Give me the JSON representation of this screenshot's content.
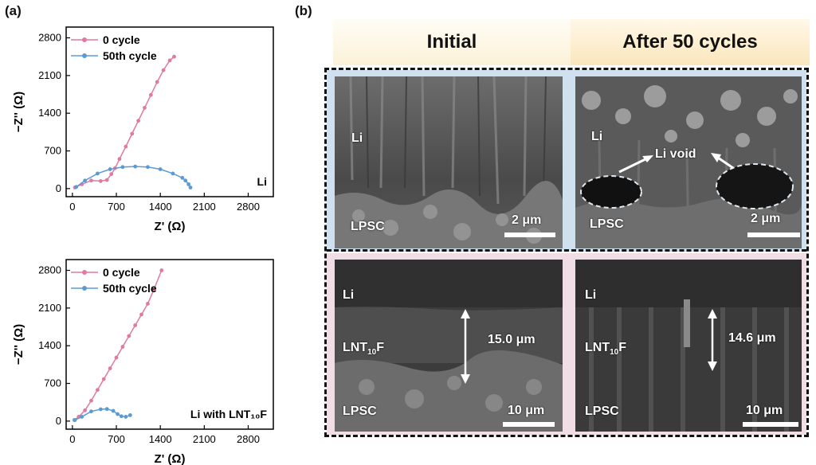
{
  "panel_a_label": "(a)",
  "panel_b_label": "(b)",
  "chart_data": [
    {
      "type": "line",
      "annotation": "Li",
      "xlabel": "Z' (Ω)",
      "ylabel": "−Z'' (Ω)",
      "xlim": [
        -100,
        3200
      ],
      "ylim": [
        -150,
        3000
      ],
      "xticks": [
        "0",
        "700",
        "1400",
        "2100",
        "2800"
      ],
      "yticks": [
        "0",
        "700",
        "1400",
        "2100",
        "2800"
      ],
      "legend_position": "top-left",
      "series": [
        {
          "name": "0   cycle",
          "color": "#e07aa0",
          "x": [
            40,
            150,
            300,
            450,
            550,
            620,
            680,
            750,
            850,
            950,
            1050,
            1150,
            1250,
            1350,
            1450,
            1550,
            1620
          ],
          "y": [
            20,
            80,
            150,
            140,
            160,
            270,
            380,
            550,
            780,
            1020,
            1260,
            1500,
            1740,
            1980,
            2200,
            2380,
            2450
          ]
        },
        {
          "name": "50th cycle",
          "color": "#5b9bd5",
          "x": [
            60,
            200,
            400,
            600,
            800,
            1000,
            1200,
            1400,
            1600,
            1750,
            1800,
            1850,
            1880
          ],
          "y": [
            30,
            150,
            280,
            360,
            400,
            410,
            400,
            360,
            280,
            200,
            150,
            80,
            20
          ]
        }
      ]
    },
    {
      "type": "line",
      "annotation": "Li with LNT₁₀F",
      "xlabel": "Z' (Ω)",
      "ylabel": "−Z'' (Ω)",
      "xlim": [
        -100,
        3200
      ],
      "ylim": [
        -150,
        3000
      ],
      "xticks": [
        "0",
        "700",
        "1400",
        "2100",
        "2800"
      ],
      "yticks": [
        "0",
        "700",
        "1400",
        "2100",
        "2800"
      ],
      "legend_position": "top-left",
      "series": [
        {
          "name": "0   cycle",
          "color": "#e07aa0",
          "x": [
            30,
            100,
            200,
            300,
            400,
            500,
            600,
            700,
            800,
            900,
            1000,
            1100,
            1200,
            1300,
            1420
          ],
          "y": [
            20,
            80,
            200,
            380,
            580,
            780,
            980,
            1180,
            1380,
            1580,
            1780,
            1980,
            2180,
            2450,
            2800
          ]
        },
        {
          "name": "50th cycle",
          "color": "#5b9bd5",
          "x": [
            40,
            150,
            300,
            450,
            550,
            650,
            720,
            780,
            850,
            920
          ],
          "y": [
            20,
            80,
            180,
            220,
            225,
            190,
            130,
            90,
            80,
            110
          ]
        }
      ]
    }
  ],
  "panel_b": {
    "col_initial": "Initial",
    "col_after": "After 50 cycles",
    "top_left": {
      "li": "Li",
      "lpsc": "LPSC",
      "scale": "2 μm"
    },
    "top_right": {
      "li": "Li",
      "lpsc": "LPSC",
      "scale": "2 μm",
      "void": "Li void"
    },
    "bottom_left": {
      "li": "Li",
      "lnt": "LNT",
      "lnt_sub": "10",
      "lnt_end": "F",
      "lpsc": "LPSC",
      "scale": "10 μm",
      "thickness": "15.0 μm"
    },
    "bottom_right": {
      "li": "Li",
      "lnt": "LNT",
      "lnt_sub": "10",
      "lnt_end": "F",
      "lpsc": "LPSC",
      "scale": "10 μm",
      "thickness": "14.6 μm"
    },
    "colors": {
      "header_initial": "#fbf1d7",
      "header_after": "#fbe9c4",
      "top_bg": "#cfe0ef",
      "bottom_bg": "#f1dde6"
    }
  }
}
